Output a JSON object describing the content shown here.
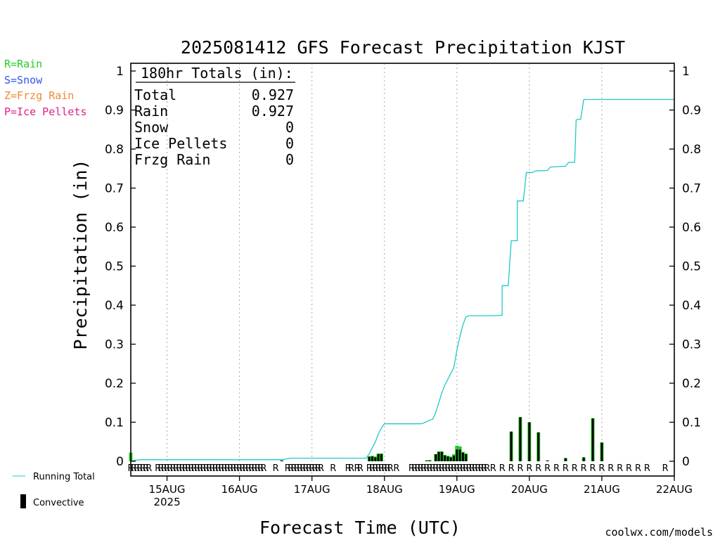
{
  "title": "2025081412 GFS Forecast Precipitation KJST",
  "y_axis_label": "Precipitation (in)",
  "x_axis_label": "Forecast Time (UTC)",
  "watermark": "coolwx.com/models",
  "legend": {
    "types": [
      {
        "text": "R=Rain",
        "color": "#22cc22"
      },
      {
        "text": "S=Snow",
        "color": "#3355ee"
      },
      {
        "text": "Z=Frzg Rain",
        "color": "#ee8833"
      },
      {
        "text": "P=Ice Pellets",
        "color": "#e0208a"
      }
    ],
    "running_total": "Running Total",
    "convective": "Convective"
  },
  "totals_box": {
    "header": "180hr Totals (in):",
    "rows": [
      {
        "label": "Total",
        "value": "0.927"
      },
      {
        "label": "Rain",
        "value": "0.927"
      },
      {
        "label": "Snow",
        "value": "0"
      },
      {
        "label": "Ice Pellets",
        "value": "0"
      },
      {
        "label": "Frzg Rain",
        "value": "0"
      }
    ]
  },
  "colors": {
    "running_total": "#20c8c8",
    "rain_bar": "#22cc22",
    "convective_bar": "#000000",
    "rain_marker": "#22cc22",
    "watermark": "#dd2222",
    "grid": "#aaaaaa"
  },
  "chart_data": {
    "type": "bar",
    "x_unit": "forecast hour from 2025-08-14 12Z",
    "xlim_hours": [
      0,
      180
    ],
    "ylim": [
      0,
      1
    ],
    "y_ticks": [
      0,
      0.1,
      0.2,
      0.3,
      0.4,
      0.5,
      0.6,
      0.7,
      0.8,
      0.9,
      1
    ],
    "y_tick_labels": [
      "0",
      "0.1",
      "0.2",
      "0.3",
      "0.4",
      "0.5",
      "0.6",
      "0.7",
      "0.8",
      "0.9",
      "1"
    ],
    "x_ticks": [
      {
        "hour": 12,
        "label": "15AUG",
        "sublabel": "2025"
      },
      {
        "hour": 36,
        "label": "16AUG"
      },
      {
        "hour": 60,
        "label": "17AUG"
      },
      {
        "hour": 84,
        "label": "18AUG"
      },
      {
        "hour": 108,
        "label": "19AUG"
      },
      {
        "hour": 132,
        "label": "20AUG"
      },
      {
        "hour": 156,
        "label": "21AUG"
      },
      {
        "hour": 180,
        "label": "22AUG"
      }
    ],
    "grid": true,
    "running_total": [
      [
        0,
        0
      ],
      [
        1,
        0.002
      ],
      [
        3,
        0.004
      ],
      [
        50,
        0.004
      ],
      [
        53,
        0.008
      ],
      [
        78,
        0.008
      ],
      [
        79,
        0.02
      ],
      [
        80,
        0.035
      ],
      [
        81,
        0.05
      ],
      [
        82,
        0.07
      ],
      [
        83,
        0.085
      ],
      [
        84,
        0.096
      ],
      [
        96,
        0.096
      ],
      [
        97,
        0.098
      ],
      [
        99,
        0.105
      ],
      [
        100,
        0.108
      ],
      [
        101,
        0.125
      ],
      [
        102,
        0.15
      ],
      [
        103,
        0.175
      ],
      [
        104,
        0.195
      ],
      [
        105,
        0.21
      ],
      [
        106,
        0.225
      ],
      [
        107,
        0.24
      ],
      [
        108,
        0.285
      ],
      [
        109,
        0.32
      ],
      [
        110,
        0.35
      ],
      [
        111,
        0.37
      ],
      [
        112,
        0.373
      ],
      [
        120,
        0.373
      ],
      [
        123,
        0.374
      ],
      [
        123,
        0.45
      ],
      [
        125,
        0.45
      ],
      [
        126,
        0.565
      ],
      [
        128,
        0.565
      ],
      [
        128,
        0.667
      ],
      [
        130,
        0.667
      ],
      [
        131,
        0.74
      ],
      [
        133,
        0.74
      ],
      [
        134,
        0.744
      ],
      [
        138,
        0.745
      ],
      [
        139,
        0.754
      ],
      [
        144,
        0.756
      ],
      [
        145,
        0.766
      ],
      [
        147,
        0.766
      ],
      [
        147.5,
        0.875
      ],
      [
        149,
        0.877
      ],
      [
        150,
        0.927
      ],
      [
        180,
        0.927
      ]
    ],
    "rain_bars": [
      [
        0,
        0.022
      ],
      [
        50,
        0.002
      ],
      [
        79,
        0.012
      ],
      [
        80,
        0.014
      ],
      [
        81,
        0.012
      ],
      [
        82,
        0.02
      ],
      [
        83,
        0.02
      ],
      [
        98,
        0.002
      ],
      [
        99,
        0.003
      ],
      [
        101,
        0.018
      ],
      [
        102,
        0.025
      ],
      [
        103,
        0.025
      ],
      [
        104,
        0.016
      ],
      [
        105,
        0.014
      ],
      [
        106,
        0.012
      ],
      [
        107,
        0.018
      ],
      [
        108,
        0.04
      ],
      [
        109,
        0.038
      ],
      [
        110,
        0.024
      ],
      [
        111,
        0.02
      ],
      [
        126,
        0.076
      ],
      [
        129,
        0.113
      ],
      [
        132,
        0.1
      ],
      [
        135,
        0.074
      ],
      [
        138,
        0.002
      ],
      [
        144,
        0.008
      ],
      [
        150,
        0.01
      ],
      [
        153,
        0.11
      ],
      [
        156,
        0.048
      ]
    ],
    "convective_bars": [
      [
        50,
        0.002
      ],
      [
        79,
        0.012
      ],
      [
        80,
        0.012
      ],
      [
        81,
        0.01
      ],
      [
        82,
        0.018
      ],
      [
        83,
        0.018
      ],
      [
        98,
        0.002
      ],
      [
        99,
        0.002
      ],
      [
        101,
        0.018
      ],
      [
        102,
        0.024
      ],
      [
        103,
        0.024
      ],
      [
        104,
        0.015
      ],
      [
        105,
        0.012
      ],
      [
        106,
        0.01
      ],
      [
        107,
        0.014
      ],
      [
        108,
        0.03
      ],
      [
        109,
        0.03
      ],
      [
        110,
        0.022
      ],
      [
        111,
        0.018
      ],
      [
        126,
        0.076
      ],
      [
        129,
        0.113
      ],
      [
        132,
        0.1
      ],
      [
        135,
        0.074
      ],
      [
        138,
        0.002
      ],
      [
        144,
        0.008
      ],
      [
        150,
        0.01
      ],
      [
        153,
        0.11
      ],
      [
        156,
        0.048
      ]
    ],
    "precip_type_markers": {
      "rain_hours": [
        0,
        1,
        2,
        3,
        4,
        5,
        6,
        9,
        10,
        11,
        12,
        13,
        14,
        15,
        16,
        17,
        18,
        19,
        20,
        21,
        22,
        23,
        24,
        25,
        26,
        27,
        28,
        29,
        30,
        31,
        32,
        33,
        34,
        35,
        36,
        37,
        38,
        39,
        40,
        41,
        42,
        43,
        44,
        48,
        52,
        53,
        54,
        55,
        56,
        57,
        58,
        59,
        60,
        61,
        62,
        63,
        67,
        72,
        73,
        75,
        76,
        79,
        80,
        81,
        82,
        83,
        84,
        85,
        86,
        88,
        93,
        94,
        95,
        96,
        97,
        98,
        99,
        100,
        101,
        102,
        103,
        104,
        105,
        106,
        107,
        108,
        109,
        110,
        111,
        112,
        113,
        114,
        115,
        116,
        117,
        118,
        120,
        123,
        126,
        129,
        132,
        135,
        138,
        141,
        144,
        147,
        150,
        153,
        156,
        159,
        162,
        165,
        168,
        171,
        177
      ],
      "marker": "R"
    }
  }
}
